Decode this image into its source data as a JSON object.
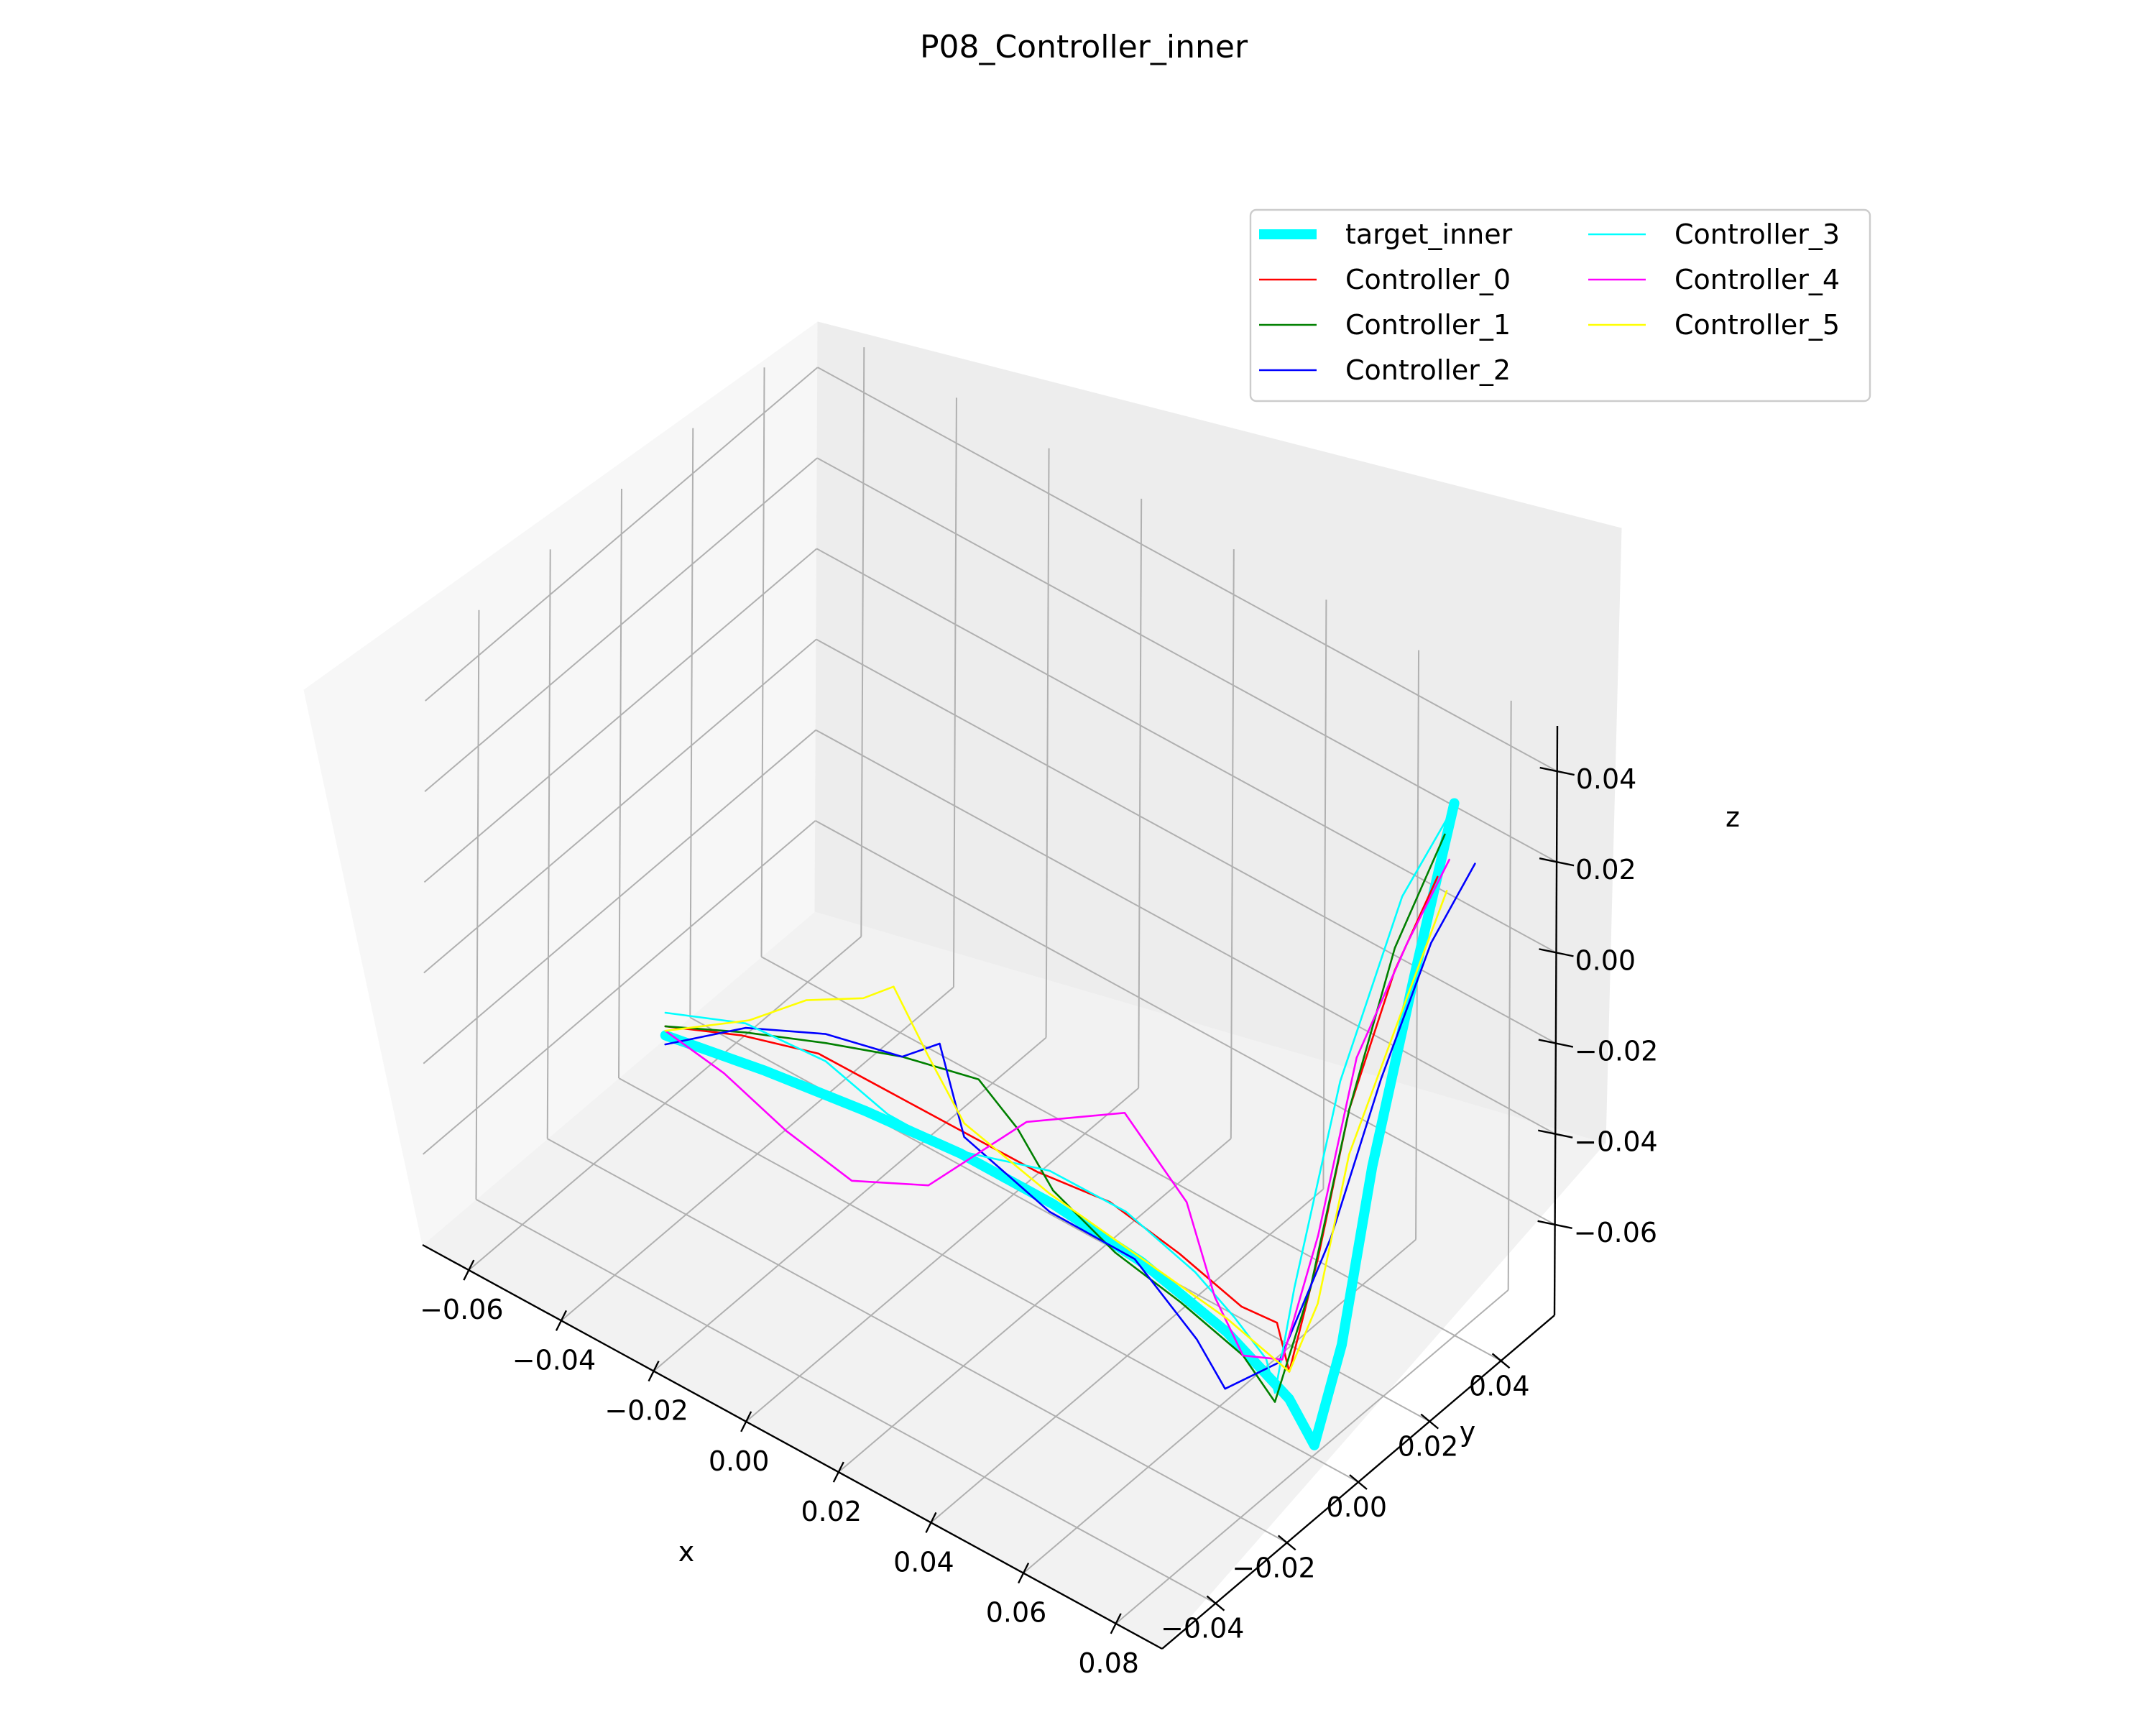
{
  "chart_data": {
    "type": "line",
    "projection": "3d",
    "title": "P08_Controller_inner",
    "xlabel": "x",
    "ylabel": "y",
    "zlabel": "z",
    "xlim": [
      -0.07,
      0.09
    ],
    "ylim": [
      -0.055,
      0.055
    ],
    "zlim": [
      -0.08,
      0.05
    ],
    "xticks": [
      "−0.06",
      "−0.04",
      "−0.02",
      "0.00",
      "0.02",
      "0.04",
      "0.06",
      "0.08"
    ],
    "yticks": [
      "−0.04",
      "−0.02",
      "0.00",
      "0.02",
      "0.04"
    ],
    "zticks": [
      "−0.06",
      "−0.04",
      "−0.02",
      "0.00",
      "0.02",
      "0.04"
    ],
    "grid": true,
    "legend_position": "top-right",
    "legend_columns": 2,
    "series": [
      {
        "name": "target_inner",
        "color": "#00ffff",
        "x": [
          -0.06,
          -0.04,
          -0.02,
          0.0,
          0.02,
          0.04,
          0.06,
          0.075,
          0.082,
          0.084,
          0.085,
          0.086,
          0.087
        ],
        "y": [
          0.0,
          0.002,
          0.004,
          0.005,
          0.005,
          0.004,
          0.002,
          0.0,
          -0.002,
          0.003,
          0.01,
          0.02,
          0.03
        ],
        "z": [
          -0.065,
          -0.063,
          -0.062,
          -0.061,
          -0.061,
          -0.062,
          -0.065,
          -0.07,
          -0.075,
          -0.055,
          -0.02,
          0.015,
          0.048
        ]
      },
      {
        "name": "Controller_0",
        "color": "#ff0000",
        "x": [
          -0.06,
          -0.045,
          -0.03,
          -0.015,
          0.0,
          0.015,
          0.03,
          0.045,
          0.06,
          0.07,
          0.075,
          0.078,
          0.08,
          0.082,
          0.085
        ],
        "y": [
          0.0,
          0.002,
          0.004,
          0.005,
          0.006,
          0.007,
          0.008,
          0.008,
          0.006,
          0.003,
          0.0,
          0.004,
          0.01,
          0.02,
          0.028
        ],
        "z": [
          -0.063,
          -0.058,
          -0.055,
          -0.056,
          -0.057,
          -0.058,
          -0.057,
          -0.06,
          -0.062,
          -0.058,
          -0.064,
          -0.04,
          -0.01,
          0.015,
          0.032
        ]
      },
      {
        "name": "Controller_1",
        "color": "#008000",
        "x": [
          -0.06,
          -0.045,
          -0.03,
          -0.015,
          0.0,
          0.01,
          0.02,
          0.035,
          0.05,
          0.065,
          0.075,
          0.078,
          0.08,
          0.082,
          0.085
        ],
        "y": [
          0.0,
          0.003,
          0.006,
          0.008,
          0.01,
          0.008,
          0.005,
          0.003,
          0.002,
          0.0,
          -0.004,
          0.002,
          0.01,
          0.02,
          0.03
        ],
        "z": [
          -0.063,
          -0.058,
          -0.054,
          -0.05,
          -0.048,
          -0.052,
          -0.058,
          -0.062,
          -0.064,
          -0.066,
          -0.068,
          -0.045,
          -0.01,
          0.02,
          0.04
        ]
      },
      {
        "name": "Controller_2",
        "color": "#0000ff",
        "x": [
          -0.06,
          -0.045,
          -0.03,
          -0.015,
          -0.01,
          0.0,
          0.02,
          0.04,
          0.055,
          0.065,
          0.075,
          0.08,
          0.083,
          0.086,
          0.09
        ],
        "y": [
          0.0,
          0.003,
          0.006,
          0.008,
          0.012,
          0.006,
          0.004,
          0.002,
          0.0,
          -0.005,
          -0.003,
          0.005,
          0.015,
          0.025,
          0.032
        ],
        "z": [
          -0.067,
          -0.057,
          -0.052,
          -0.05,
          -0.047,
          -0.058,
          -0.062,
          -0.06,
          -0.068,
          -0.07,
          -0.06,
          -0.035,
          -0.005,
          0.02,
          0.035
        ]
      },
      {
        "name": "Controller_3",
        "color": "#00ffff",
        "x": [
          -0.06,
          -0.045,
          -0.03,
          -0.015,
          0.0,
          0.02,
          0.035,
          0.05,
          0.06,
          0.07,
          0.075,
          0.076,
          0.078,
          0.082,
          0.086
        ],
        "y": [
          0.0,
          0.003,
          0.006,
          0.004,
          0.002,
          0.004,
          0.006,
          0.006,
          0.004,
          0.0,
          -0.004,
          0.0,
          0.01,
          0.022,
          0.03
        ],
        "z": [
          -0.06,
          -0.056,
          -0.058,
          -0.06,
          -0.058,
          -0.053,
          -0.055,
          -0.06,
          -0.063,
          -0.064,
          -0.066,
          -0.045,
          -0.005,
          0.03,
          0.045
        ]
      },
      {
        "name": "Controller_4",
        "color": "#ff00ff",
        "x": [
          -0.06,
          -0.045,
          -0.03,
          -0.015,
          0.0,
          0.015,
          0.03,
          0.045,
          0.055,
          0.065,
          0.075,
          0.078,
          0.08,
          0.083,
          0.086
        ],
        "y": [
          0.0,
          -0.003,
          -0.005,
          -0.006,
          -0.004,
          0.004,
          0.012,
          0.01,
          0.005,
          0.0,
          -0.002,
          0.004,
          0.012,
          0.022,
          0.03
        ],
        "z": [
          -0.064,
          -0.063,
          -0.066,
          -0.068,
          -0.062,
          -0.045,
          -0.04,
          -0.05,
          -0.062,
          -0.066,
          -0.06,
          -0.035,
          0.0,
          0.02,
          0.035
        ]
      },
      {
        "name": "Controller_5",
        "color": "#ffff00",
        "x": [
          -0.06,
          -0.045,
          -0.035,
          -0.025,
          -0.02,
          -0.01,
          0.0,
          0.02,
          0.04,
          0.06,
          0.075,
          0.078,
          0.08,
          0.083,
          0.087
        ],
        "y": [
          0.0,
          0.004,
          0.007,
          0.01,
          0.012,
          0.009,
          0.006,
          0.004,
          0.003,
          0.002,
          0.0,
          0.004,
          0.01,
          0.02,
          0.028
        ],
        "z": [
          -0.064,
          -0.056,
          -0.048,
          -0.044,
          -0.04,
          -0.048,
          -0.055,
          -0.058,
          -0.06,
          -0.062,
          -0.064,
          -0.05,
          -0.02,
          0.005,
          0.03
        ]
      }
    ]
  }
}
